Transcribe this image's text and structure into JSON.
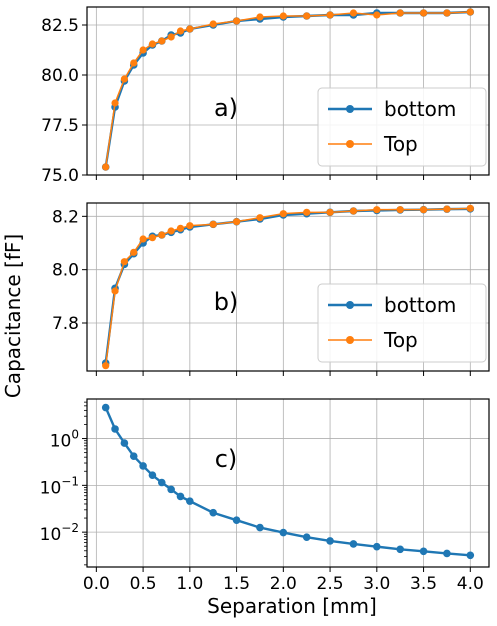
{
  "colors": {
    "bottom": "#1f77b4",
    "top": "#ff7f0e",
    "grid": "#b0b0b0",
    "legend_border": "#cccccc"
  },
  "chart_data": {
    "xlabel": "Separation [mm]",
    "ylabel": "Capacitance [fF]",
    "shared_x": true,
    "xlim": [
      -0.1,
      4.2
    ],
    "xticks": [
      0.0,
      0.5,
      1.0,
      1.5,
      2.0,
      2.5,
      3.0,
      3.5,
      4.0
    ],
    "xtick_labels": [
      "0.0",
      "0.5",
      "1.0",
      "1.5",
      "2.0",
      "2.5",
      "3.0",
      "3.5",
      "4.0"
    ],
    "grid": true,
    "panels": [
      {
        "label": "a)",
        "type": "line",
        "yscale": "linear",
        "ylim": [
          75.0,
          83.4
        ],
        "yticks": [
          75.0,
          77.5,
          80.0,
          82.5
        ],
        "ytick_labels": [
          "75.0",
          "77.5",
          "80.0",
          "82.5"
        ],
        "legend_position": "center-right",
        "series": [
          {
            "name": "bottom",
            "color_key": "bottom",
            "x": [
              0.1,
              0.2,
              0.3,
              0.4,
              0.5,
              0.6,
              0.7,
              0.8,
              0.9,
              1.0,
              1.25,
              1.5,
              1.75,
              2.0,
              2.25,
              2.5,
              2.75,
              3.0,
              3.25,
              3.5,
              3.75,
              4.0
            ],
            "values": [
              75.4,
              78.4,
              79.7,
              80.5,
              81.1,
              81.5,
              81.7,
              82.0,
              82.1,
              82.3,
              82.5,
              82.7,
              82.8,
              82.9,
              82.95,
              83.0,
              83.0,
              83.1,
              83.1,
              83.1,
              83.1,
              83.15
            ]
          },
          {
            "name": "Top",
            "color_key": "top",
            "x": [
              0.1,
              0.2,
              0.3,
              0.4,
              0.5,
              0.6,
              0.7,
              0.8,
              0.9,
              1.0,
              1.25,
              1.5,
              1.75,
              2.0,
              2.25,
              2.5,
              2.75,
              3.0,
              3.25,
              3.5,
              3.75,
              4.0
            ],
            "values": [
              75.4,
              78.6,
              79.8,
              80.6,
              81.25,
              81.55,
              81.7,
              81.9,
              82.2,
              82.3,
              82.55,
              82.7,
              82.9,
              82.95,
              82.95,
              83.0,
              83.1,
              83.0,
              83.1,
              83.1,
              83.1,
              83.15
            ]
          }
        ]
      },
      {
        "label": "b)",
        "type": "line",
        "yscale": "linear",
        "ylim": [
          7.62,
          8.25
        ],
        "yticks": [
          7.8,
          8.0,
          8.2
        ],
        "ytick_labels": [
          "7.8",
          "8.0",
          "8.2"
        ],
        "legend_position": "center-right",
        "series": [
          {
            "name": "bottom",
            "color_key": "bottom",
            "x": [
              0.1,
              0.2,
              0.3,
              0.4,
              0.5,
              0.6,
              0.7,
              0.8,
              0.9,
              1.0,
              1.25,
              1.5,
              1.75,
              2.0,
              2.25,
              2.5,
              2.75,
              3.0,
              3.25,
              3.5,
              3.75,
              4.0
            ],
            "values": [
              7.65,
              7.93,
              8.02,
              8.06,
              8.1,
              8.125,
              8.13,
              8.14,
              8.15,
              8.16,
              8.17,
              8.18,
              8.19,
              8.205,
              8.21,
              8.215,
              8.22,
              8.222,
              8.224,
              8.225,
              8.227,
              8.228
            ]
          },
          {
            "name": "Top",
            "color_key": "top",
            "x": [
              0.1,
              0.2,
              0.3,
              0.4,
              0.5,
              0.6,
              0.7,
              0.8,
              0.9,
              1.0,
              1.25,
              1.5,
              1.75,
              2.0,
              2.25,
              2.5,
              2.75,
              3.0,
              3.25,
              3.5,
              3.75,
              4.0
            ],
            "values": [
              7.64,
              7.92,
              8.03,
              8.065,
              8.115,
              8.12,
              8.13,
              8.145,
              8.155,
              8.165,
              8.17,
              8.18,
              8.195,
              8.21,
              8.215,
              8.215,
              8.22,
              8.225,
              8.225,
              8.225,
              8.227,
              8.23
            ]
          }
        ]
      },
      {
        "label": "c)",
        "type": "line",
        "yscale": "log",
        "ylim": [
          0.0018,
          7.0
        ],
        "yticks": [
          0.01,
          0.1,
          1.0
        ],
        "ytick_labels": [
          {
            "base": "10",
            "exp": "−2"
          },
          {
            "base": "10",
            "exp": "−1"
          },
          {
            "base": "10",
            "exp": "0"
          }
        ],
        "legend_position": "none",
        "series": [
          {
            "color_key": "bottom",
            "x": [
              0.1,
              0.2,
              0.3,
              0.4,
              0.5,
              0.6,
              0.7,
              0.8,
              0.9,
              1.0,
              1.25,
              1.5,
              1.75,
              2.0,
              2.25,
              2.5,
              2.75,
              3.0,
              3.25,
              3.5,
              3.75,
              4.0
            ],
            "values": [
              4.6,
              1.6,
              0.8,
              0.42,
              0.26,
              0.165,
              0.115,
              0.082,
              0.058,
              0.046,
              0.026,
              0.018,
              0.0125,
              0.0098,
              0.0078,
              0.0065,
              0.0056,
              0.0049,
              0.0043,
              0.0039,
              0.0035,
              0.0032
            ]
          }
        ]
      }
    ]
  }
}
